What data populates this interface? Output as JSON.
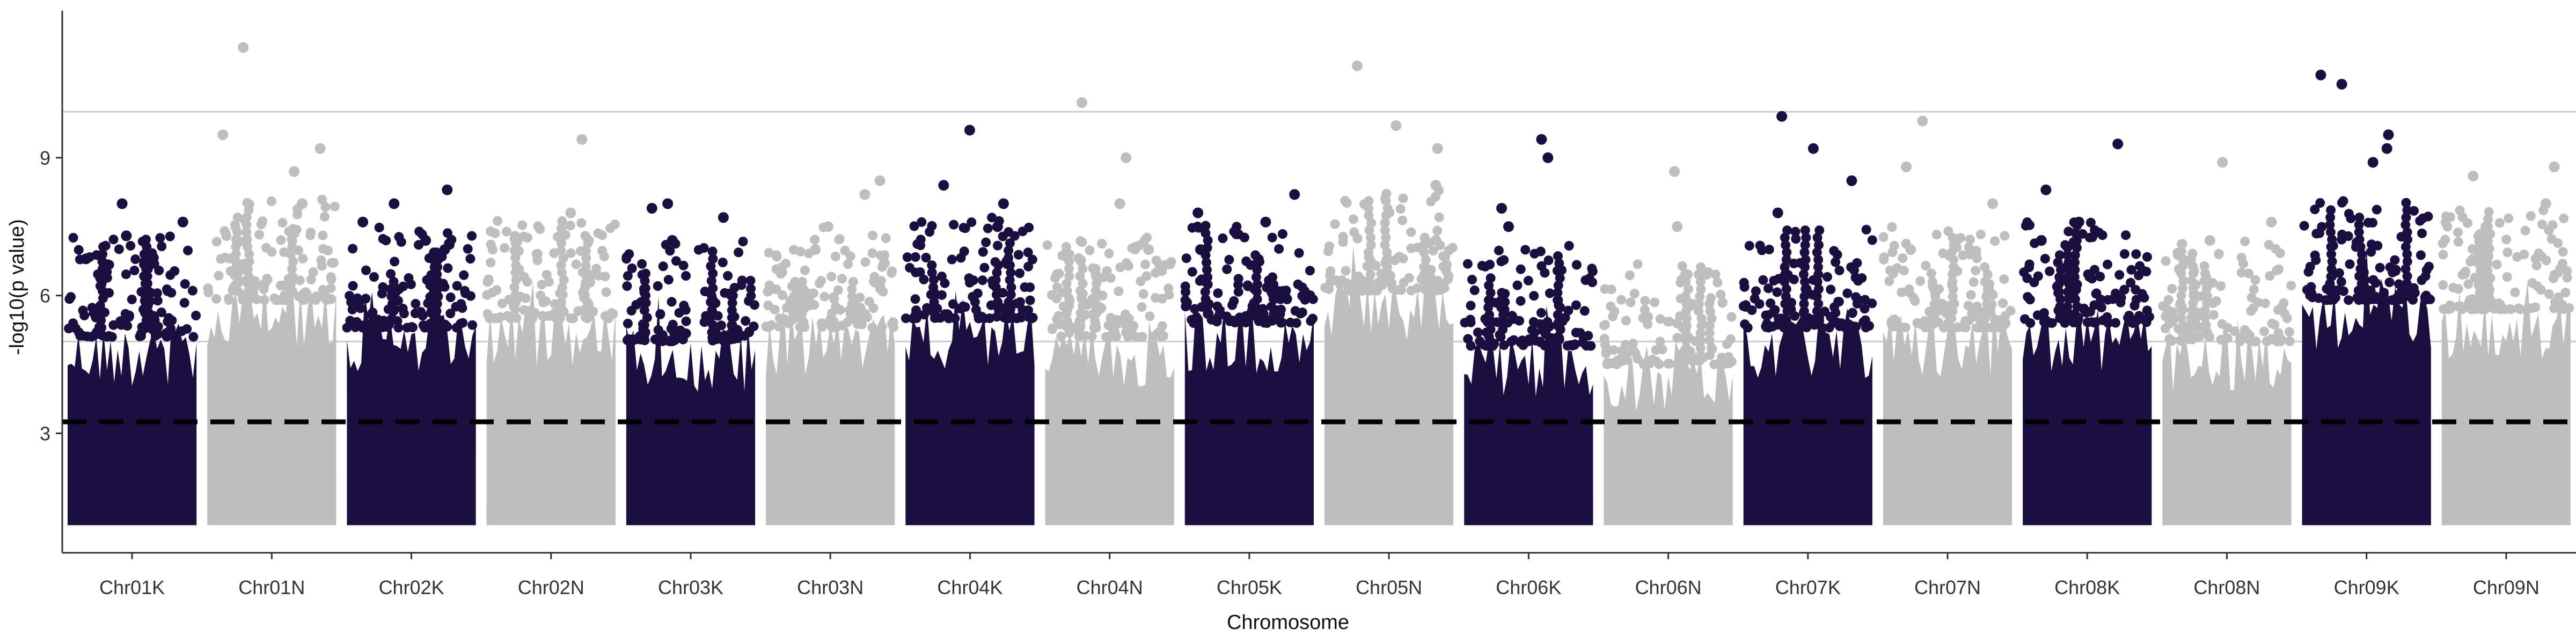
{
  "chart_data": {
    "type": "scatter",
    "title": "",
    "xlabel": "Chromosome",
    "ylabel": "-log10(p value)",
    "ylim": [
      0.4,
      12.2
    ],
    "yticks": [
      3,
      6,
      9
    ],
    "grid": "off",
    "legend": "none",
    "colors": {
      "dark": "#1b0f40",
      "light": "#bebebe"
    },
    "reference_lines": [
      {
        "y": 3.25,
        "style": "dashed",
        "color": "#000000"
      },
      {
        "y": 5.0,
        "style": "solid",
        "color": "#cccccc"
      },
      {
        "y": 10.0,
        "style": "solid",
        "color": "#cccccc"
      }
    ],
    "categories": [
      {
        "name": "Chr01K",
        "color": "dark",
        "top": 5.6,
        "outliers": [
          7.6,
          8.0,
          7.3,
          6.8
        ]
      },
      {
        "name": "Chr01N",
        "color": "light",
        "top": 6.4,
        "outliers": [
          11.4,
          9.5,
          9.2,
          8.7,
          8.0
        ]
      },
      {
        "name": "Chr02K",
        "color": "dark",
        "top": 5.8,
        "outliers": [
          8.0,
          7.6,
          8.3,
          7.2,
          7.0
        ]
      },
      {
        "name": "Chr02N",
        "color": "light",
        "top": 6.0,
        "outliers": [
          9.4,
          7.8,
          7.2,
          6.9
        ]
      },
      {
        "name": "Chr03K",
        "color": "dark",
        "top": 5.5,
        "outliers": [
          8.0,
          7.9,
          7.7,
          7.2
        ]
      },
      {
        "name": "Chr03N",
        "color": "light",
        "top": 5.8,
        "outliers": [
          8.5,
          8.2,
          7.5,
          7.0
        ]
      },
      {
        "name": "Chr04K",
        "color": "dark",
        "top": 6.0,
        "outliers": [
          9.6,
          8.4,
          8.0,
          7.5
        ]
      },
      {
        "name": "Chr04N",
        "color": "light",
        "top": 5.6,
        "outliers": [
          10.2,
          9.0,
          8.0,
          7.0
        ]
      },
      {
        "name": "Chr05K",
        "color": "dark",
        "top": 5.9,
        "outliers": [
          8.2,
          7.8,
          7.6,
          7.0
        ]
      },
      {
        "name": "Chr05N",
        "color": "light",
        "top": 6.6,
        "outliers": [
          11.0,
          9.7,
          9.2,
          8.4
        ]
      },
      {
        "name": "Chr06K",
        "color": "dark",
        "top": 5.4,
        "outliers": [
          9.4,
          9.0,
          7.9,
          7.5
        ]
      },
      {
        "name": "Chr06N",
        "color": "light",
        "top": 5.0,
        "outliers": [
          8.7,
          7.5,
          6.5
        ]
      },
      {
        "name": "Chr07K",
        "color": "dark",
        "top": 5.8,
        "outliers": [
          9.9,
          9.2,
          8.5,
          7.8
        ]
      },
      {
        "name": "Chr07N",
        "color": "light",
        "top": 5.8,
        "outliers": [
          9.8,
          8.8,
          8.0,
          7.0
        ]
      },
      {
        "name": "Chr08K",
        "color": "dark",
        "top": 5.9,
        "outliers": [
          9.3,
          8.3,
          7.6,
          7.2
        ]
      },
      {
        "name": "Chr08N",
        "color": "light",
        "top": 5.5,
        "outliers": [
          8.9,
          7.6,
          7.2
        ]
      },
      {
        "name": "Chr09K",
        "color": "dark",
        "top": 6.4,
        "outliers": [
          10.8,
          10.6,
          9.5,
          9.2,
          8.9
        ]
      },
      {
        "name": "Chr09N",
        "color": "light",
        "top": 6.2,
        "outliers": [
          8.8,
          8.6,
          8.0,
          7.4
        ]
      }
    ]
  }
}
